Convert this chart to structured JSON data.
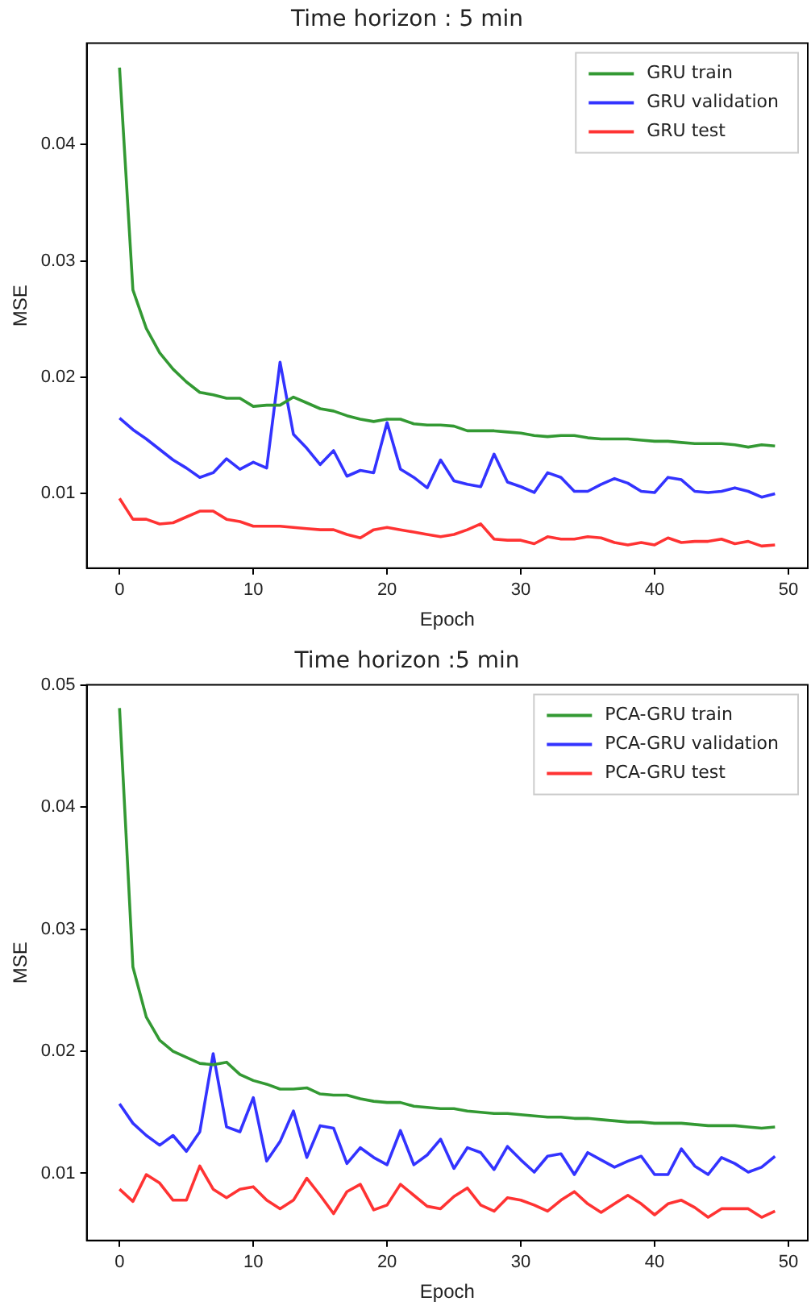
{
  "chart_data": [
    {
      "type": "line",
      "title": "Time horizon : 5 min",
      "xlabel": "Epoch",
      "ylabel": "MSE",
      "x": [
        0,
        1,
        2,
        3,
        4,
        5,
        6,
        7,
        8,
        9,
        10,
        11,
        12,
        13,
        14,
        15,
        16,
        17,
        18,
        19,
        20,
        21,
        22,
        23,
        24,
        25,
        26,
        27,
        28,
        29,
        30,
        31,
        32,
        33,
        34,
        35,
        36,
        37,
        38,
        39,
        40,
        41,
        42,
        43,
        44,
        45,
        46,
        47,
        48,
        49
      ],
      "xlim": [
        -2.45,
        51.45
      ],
      "xticks": [
        0,
        10,
        20,
        30,
        40,
        50
      ],
      "ylim": [
        0.0036,
        0.0487
      ],
      "yticks": [
        0.01,
        0.02,
        0.03,
        0.04
      ],
      "grid": false,
      "legend": "top right",
      "marker": "none",
      "line_style": "solid",
      "series": [
        {
          "name": "GRU train",
          "color": "#339933",
          "values": [
            0.0466,
            0.0275,
            0.0242,
            0.0221,
            0.0207,
            0.0196,
            0.0187,
            0.0185,
            0.0182,
            0.0182,
            0.0175,
            0.0176,
            0.0176,
            0.0183,
            0.0178,
            0.0173,
            0.0171,
            0.0167,
            0.0164,
            0.0162,
            0.0164,
            0.0164,
            0.016,
            0.0159,
            0.0159,
            0.0158,
            0.0154,
            0.0154,
            0.0154,
            0.0153,
            0.0152,
            0.015,
            0.0149,
            0.015,
            0.015,
            0.0148,
            0.0147,
            0.0147,
            0.0147,
            0.0146,
            0.0145,
            0.0145,
            0.0144,
            0.0143,
            0.0143,
            0.0143,
            0.0142,
            0.014,
            0.0142,
            0.0141
          ]
        },
        {
          "name": "GRU validation",
          "color": "#3333ff",
          "values": [
            0.0165,
            0.0155,
            0.0147,
            0.0138,
            0.0129,
            0.0122,
            0.0114,
            0.0118,
            0.013,
            0.0121,
            0.0127,
            0.0122,
            0.0213,
            0.0151,
            0.0139,
            0.0125,
            0.0137,
            0.0115,
            0.012,
            0.0118,
            0.0161,
            0.0121,
            0.0114,
            0.0105,
            0.0129,
            0.0111,
            0.0108,
            0.0106,
            0.0134,
            0.011,
            0.0106,
            0.0101,
            0.0118,
            0.0114,
            0.0102,
            0.0102,
            0.0108,
            0.0113,
            0.0109,
            0.0102,
            0.0101,
            0.0114,
            0.0112,
            0.0102,
            0.0101,
            0.0102,
            0.0105,
            0.0102,
            0.0097,
            0.01
          ]
        },
        {
          "name": "GRU test",
          "color": "#ff3333",
          "values": [
            0.0096,
            0.0078,
            0.0078,
            0.0074,
            0.0075,
            0.008,
            0.0085,
            0.0085,
            0.0078,
            0.0076,
            0.0072,
            0.0072,
            0.0072,
            0.0071,
            0.007,
            0.0069,
            0.0069,
            0.0065,
            0.0062,
            0.0069,
            0.0071,
            0.0069,
            0.0067,
            0.0065,
            0.0063,
            0.0065,
            0.0069,
            0.0074,
            0.0061,
            0.006,
            0.006,
            0.0057,
            0.0063,
            0.0061,
            0.0061,
            0.0063,
            0.0062,
            0.0058,
            0.0056,
            0.0058,
            0.0056,
            0.0062,
            0.0058,
            0.0059,
            0.0059,
            0.0061,
            0.0057,
            0.0059,
            0.0055,
            0.0056
          ]
        }
      ]
    },
    {
      "type": "line",
      "title": "Time horizon :5 min",
      "xlabel": "Epoch",
      "ylabel": "MSE",
      "x": [
        0,
        1,
        2,
        3,
        4,
        5,
        6,
        7,
        8,
        9,
        10,
        11,
        12,
        13,
        14,
        15,
        16,
        17,
        18,
        19,
        20,
        21,
        22,
        23,
        24,
        25,
        26,
        27,
        28,
        29,
        30,
        31,
        32,
        33,
        34,
        35,
        36,
        37,
        38,
        39,
        40,
        41,
        42,
        43,
        44,
        45,
        46,
        47,
        48,
        49
      ],
      "xlim": [
        -2.45,
        51.45
      ],
      "xticks": [
        0,
        10,
        20,
        30,
        40,
        50
      ],
      "ylim": [
        0.0045,
        0.05
      ],
      "yticks": [
        0.01,
        0.02,
        0.03,
        0.04,
        0.05
      ],
      "grid": false,
      "legend": "top right",
      "marker": "none",
      "line_style": "solid",
      "series": [
        {
          "name": "PCA-GRU train",
          "color": "#339933",
          "values": [
            0.0481,
            0.0269,
            0.0228,
            0.0209,
            0.02,
            0.0195,
            0.019,
            0.0189,
            0.0191,
            0.0181,
            0.0176,
            0.0173,
            0.0169,
            0.0169,
            0.017,
            0.0165,
            0.0164,
            0.0164,
            0.0161,
            0.0159,
            0.0158,
            0.0158,
            0.0155,
            0.0154,
            0.0153,
            0.0153,
            0.0151,
            0.015,
            0.0149,
            0.0149,
            0.0148,
            0.0147,
            0.0146,
            0.0146,
            0.0145,
            0.0145,
            0.0144,
            0.0143,
            0.0142,
            0.0142,
            0.0141,
            0.0141,
            0.0141,
            0.014,
            0.0139,
            0.0139,
            0.0139,
            0.0138,
            0.0137,
            0.0138
          ]
        },
        {
          "name": "PCA-GRU validation",
          "color": "#3333ff",
          "values": [
            0.0157,
            0.0141,
            0.0131,
            0.0123,
            0.0131,
            0.0118,
            0.0134,
            0.0198,
            0.0138,
            0.0134,
            0.0162,
            0.011,
            0.0126,
            0.0151,
            0.0113,
            0.0139,
            0.0137,
            0.0108,
            0.0121,
            0.0113,
            0.0107,
            0.0135,
            0.0107,
            0.0115,
            0.0128,
            0.0104,
            0.0121,
            0.0117,
            0.0103,
            0.0122,
            0.0111,
            0.0101,
            0.0114,
            0.0116,
            0.0099,
            0.0117,
            0.0111,
            0.0105,
            0.011,
            0.0114,
            0.0099,
            0.0099,
            0.012,
            0.0106,
            0.0099,
            0.0113,
            0.0108,
            0.0101,
            0.0105,
            0.0114
          ]
        },
        {
          "name": "PCA-GRU test",
          "color": "#ff3333",
          "values": [
            0.0087,
            0.0077,
            0.0099,
            0.0092,
            0.0078,
            0.0078,
            0.0106,
            0.0087,
            0.008,
            0.0087,
            0.0089,
            0.0078,
            0.0071,
            0.0078,
            0.0096,
            0.0082,
            0.0067,
            0.0085,
            0.0091,
            0.007,
            0.0074,
            0.0091,
            0.0082,
            0.0073,
            0.0071,
            0.0081,
            0.0088,
            0.0074,
            0.0069,
            0.008,
            0.0078,
            0.0074,
            0.0069,
            0.0078,
            0.0085,
            0.0075,
            0.0068,
            0.0075,
            0.0082,
            0.0075,
            0.0066,
            0.0075,
            0.0078,
            0.0072,
            0.0064,
            0.0071,
            0.0071,
            0.0071,
            0.0064,
            0.0069
          ]
        }
      ]
    }
  ]
}
